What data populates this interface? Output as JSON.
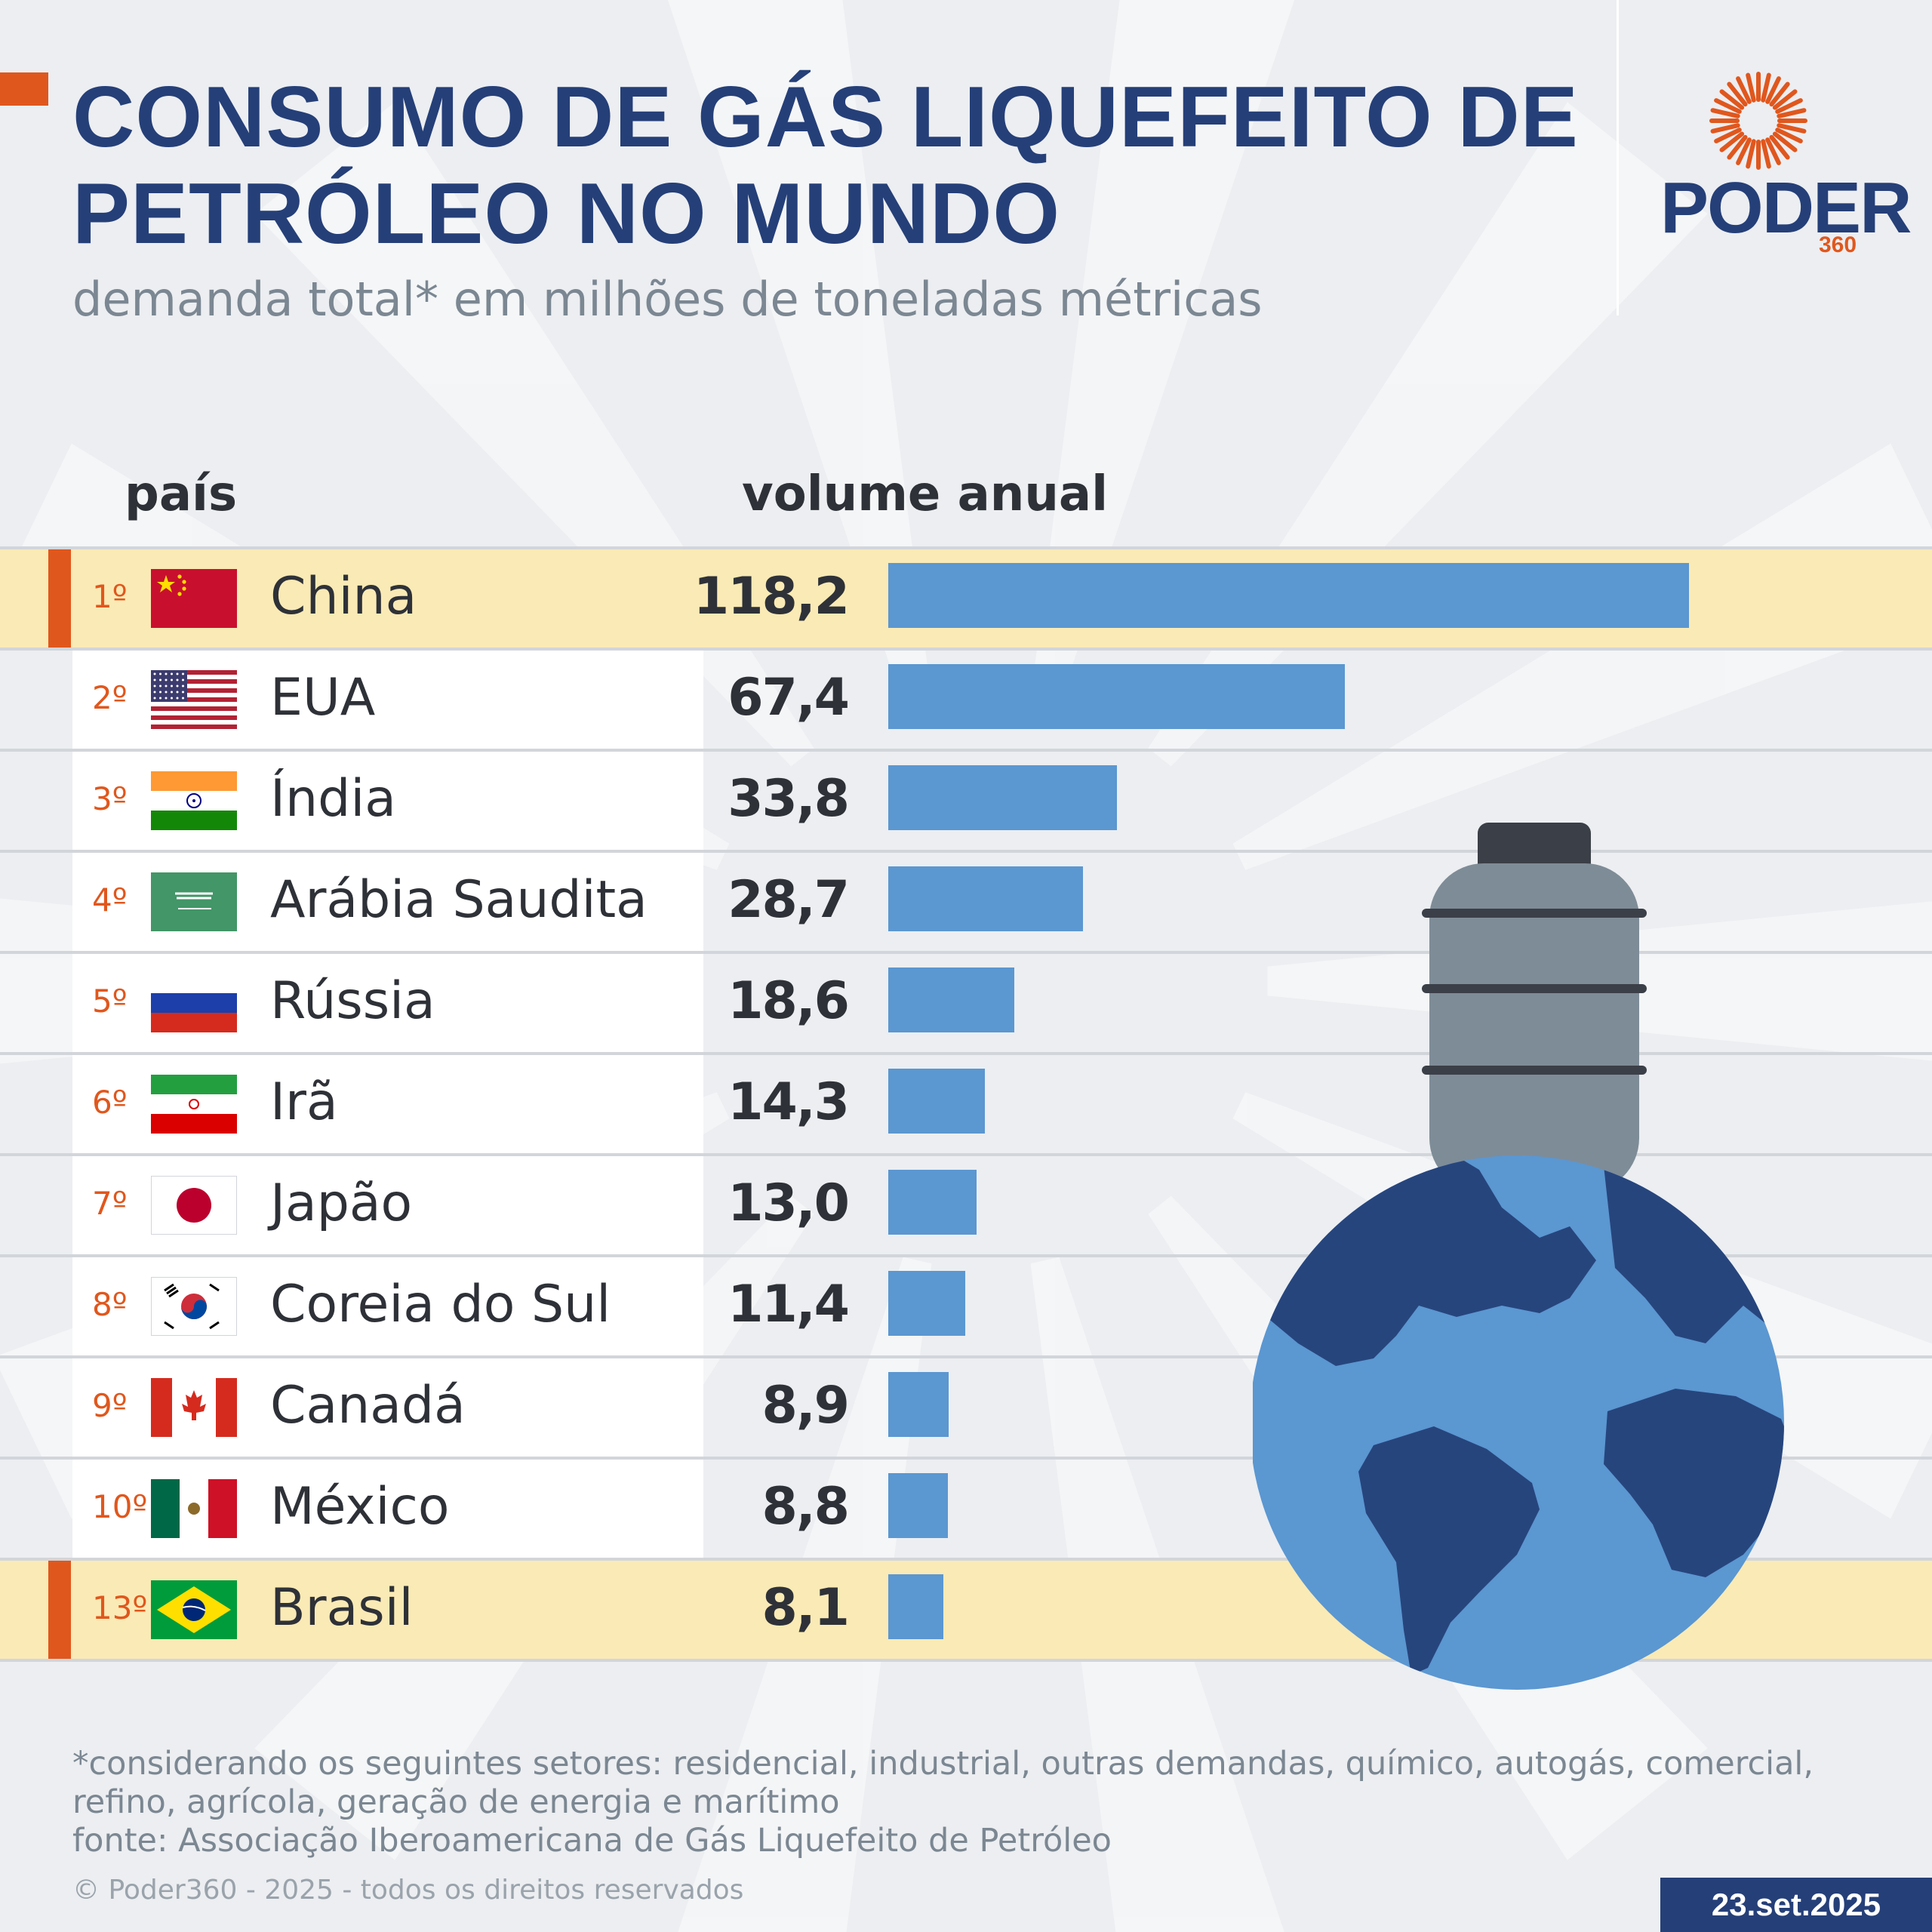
{
  "header": {
    "title_line1": "CONSUMO DE GÁS LIQUEFEITO DE",
    "title_line2": "PETRÓLEO NO MUNDO",
    "subtitle": "demanda total* em milhões de toneladas métricas"
  },
  "logo": {
    "wordmark": "PODER",
    "sub": "360"
  },
  "columns": {
    "country": "país",
    "volume": "volume anual"
  },
  "rows": [
    {
      "rank": "1º",
      "country": "China",
      "value_label": "118,2",
      "flag": "china-flag",
      "highlight": true
    },
    {
      "rank": "2º",
      "country": "EUA",
      "value_label": "67,4",
      "flag": "usa-flag",
      "highlight": false
    },
    {
      "rank": "3º",
      "country": "Índia",
      "value_label": "33,8",
      "flag": "india-flag",
      "highlight": false
    },
    {
      "rank": "4º",
      "country": "Arábia Saudita",
      "value_label": "28,7",
      "flag": "saudi-arabia-flag",
      "highlight": false
    },
    {
      "rank": "5º",
      "country": "Rússia",
      "value_label": "18,6",
      "flag": "russia-flag",
      "highlight": false
    },
    {
      "rank": "6º",
      "country": "Irã",
      "value_label": "14,3",
      "flag": "iran-flag",
      "highlight": false
    },
    {
      "rank": "7º",
      "country": "Japão",
      "value_label": "13,0",
      "flag": "japan-flag",
      "highlight": false
    },
    {
      "rank": "8º",
      "country": "Coreia do Sul",
      "value_label": "11,4",
      "flag": "south-korea-flag",
      "highlight": false
    },
    {
      "rank": "9º",
      "country": "Canadá",
      "value_label": "8,9",
      "flag": "canada-flag",
      "highlight": false
    },
    {
      "rank": "10º",
      "country": "México",
      "value_label": "8,8",
      "flag": "mexico-flag",
      "highlight": false
    },
    {
      "rank": "13º",
      "country": "Brasil",
      "value_label": "8,1",
      "flag": "brazil-flag",
      "highlight": true
    }
  ],
  "chart_data": {
    "type": "bar",
    "orientation": "horizontal",
    "categories": [
      "China",
      "EUA",
      "Índia",
      "Arábia Saudita",
      "Rússia",
      "Irã",
      "Japão",
      "Coreia do Sul",
      "Canadá",
      "México",
      "Brasil"
    ],
    "values": [
      118.2,
      67.4,
      33.8,
      28.7,
      18.6,
      14.3,
      13.0,
      11.4,
      8.9,
      8.8,
      8.1
    ],
    "title": "CONSUMO DE GÁS LIQUEFEITO DE PETRÓLEO NO MUNDO",
    "subtitle": "demanda total* em milhões de toneladas métricas",
    "xlabel": "volume anual",
    "ylabel": "país",
    "xlim": [
      0,
      118.2
    ],
    "grid": false,
    "bar_color": "#5b97d1"
  },
  "footnote": {
    "line1": "*considerando os seguintes setores: residencial, industrial, outras demandas, químico, autogás, comercial,",
    "line2": "refino, agrícola, geração de energia e marítimo",
    "source": "fonte: Associação Iberoamericana de Gás Liquefeito de Petróleo"
  },
  "copyright": "© Poder360 - 2025 - todos os direitos reservados",
  "date": "23.set.2025",
  "colors": {
    "accent": "#e0571d",
    "navy": "#253f78",
    "bar": "#5b97d1",
    "highlight_row": "#faeab5",
    "background": "#eceef1"
  },
  "icons": [
    "poder360-sun-logo",
    "gas-cylinder-icon",
    "globe-icon"
  ]
}
